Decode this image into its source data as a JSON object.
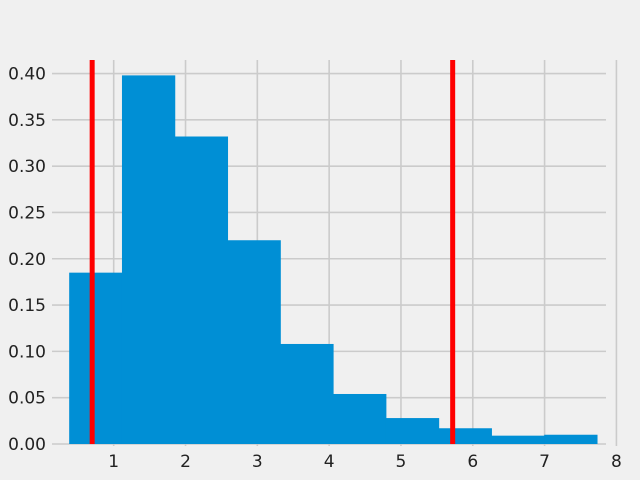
{
  "chart_data": {
    "type": "bar",
    "subtype": "histogram",
    "title": "",
    "xlabel": "",
    "ylabel": "",
    "xlim": [
      0.28,
      8.05
    ],
    "ylim": [
      0,
      0.42
    ],
    "grid": true,
    "x_ticks": [
      1,
      2,
      3,
      4,
      5,
      6,
      7,
      8
    ],
    "x_tick_labels": [
      "1",
      "2",
      "3",
      "4",
      "5",
      "6",
      "7",
      "8"
    ],
    "y_ticks": [
      0,
      0.05,
      0.1,
      0.15,
      0.2,
      0.25,
      0.3,
      0.35,
      0.4
    ],
    "y_tick_labels": [
      "0.00",
      "0.05",
      "0.10",
      "0.15",
      "0.20",
      "0.25",
      "0.30",
      "0.35",
      "0.40"
    ],
    "bin_edges": [
      0.38,
      1.115,
      1.85,
      2.585,
      3.32,
      4.055,
      4.79,
      5.525,
      6.26,
      6.995,
      7.73
    ],
    "values": [
      0.185,
      0.398,
      0.332,
      0.22,
      0.108,
      0.054,
      0.028,
      0.017,
      0.009,
      0.01
    ],
    "reference_lines": [
      0.7,
      5.72
    ],
    "colors": {
      "bars": "#008fd5",
      "reference_lines": "#ff0000",
      "grid": "#cbcbcb",
      "background": "#f0f0f0"
    }
  }
}
